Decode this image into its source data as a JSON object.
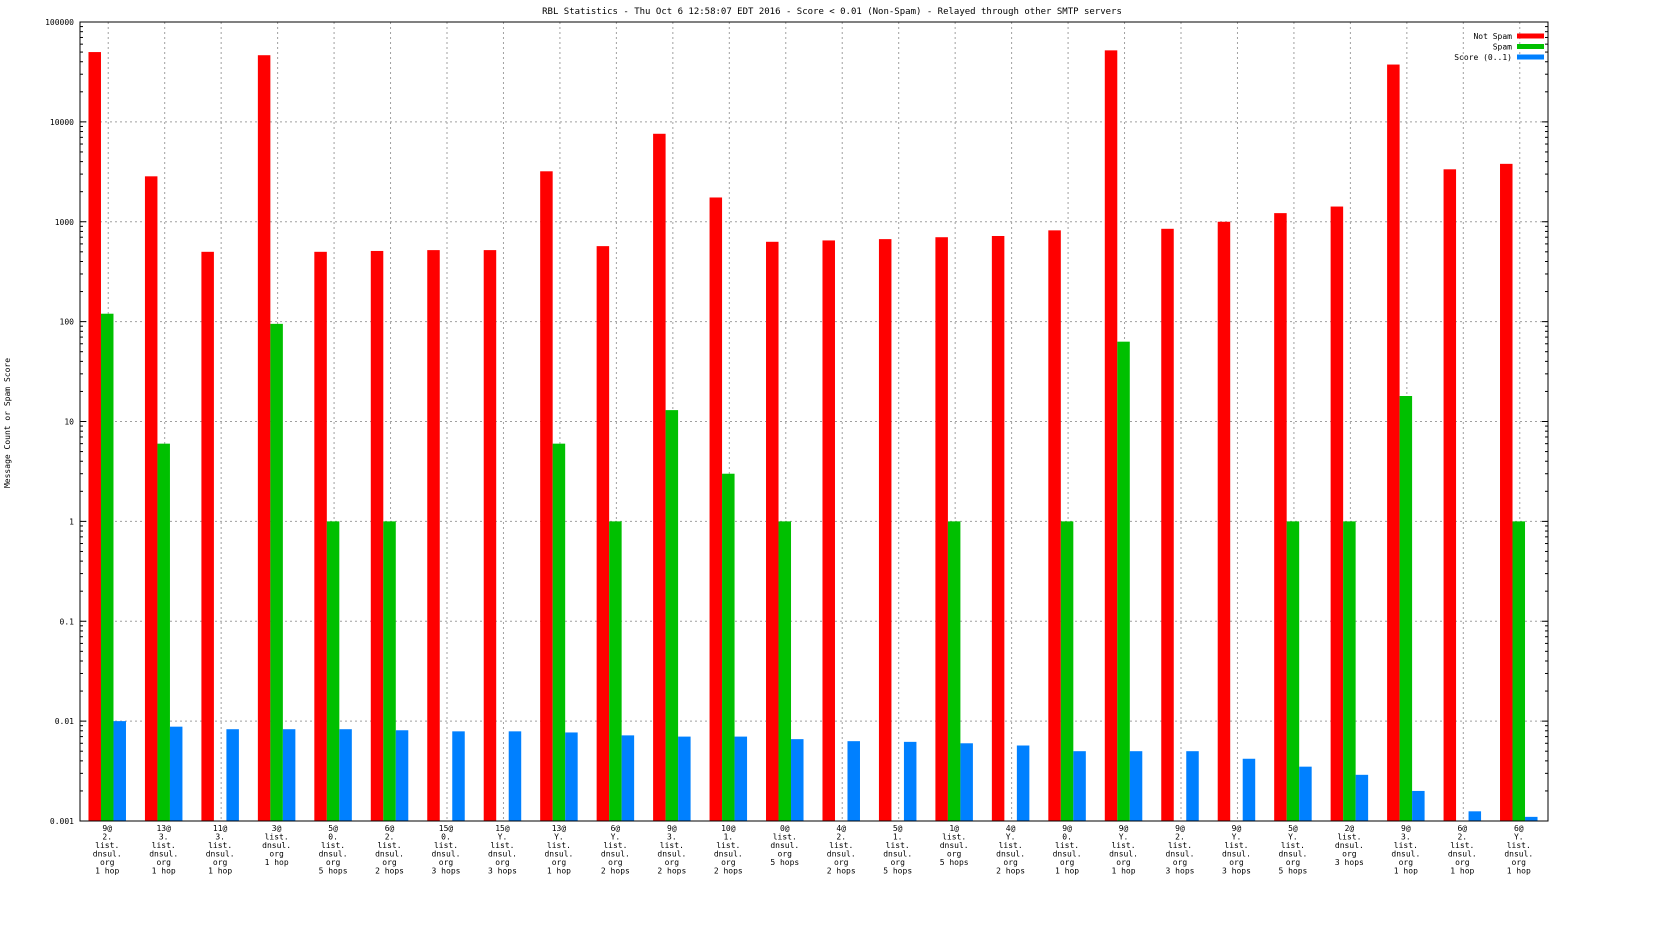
{
  "chart_data": {
    "type": "bar",
    "title": "RBL Statistics - Thu Oct  6 12:58:07 EDT 2016 - Score < 0.01 (Non-Spam) - Relayed through other SMTP servers",
    "xlabel": "",
    "ylabel": "Message Count or Spam Score",
    "y_scale": "log",
    "ylim": [
      0.001,
      100000
    ],
    "y_ticks": [
      "0.001",
      "0.01",
      "0.1",
      "1",
      "10",
      "100",
      "1000",
      "10000",
      "100000"
    ],
    "grid": true,
    "legend_position": "top-right",
    "categories": [
      [
        "9@",
        "2.",
        "list.",
        "dnsul.",
        "org",
        "1 hop"
      ],
      [
        "13@",
        "3.",
        "list.",
        "dnsul.",
        "org",
        "1 hop"
      ],
      [
        "11@",
        "3.",
        "list.",
        "dnsul.",
        "org",
        "1 hop"
      ],
      [
        "3@",
        "list.",
        "dnsul.",
        "org",
        "1 hop"
      ],
      [
        "5@",
        "0.",
        "list.",
        "dnsul.",
        "org",
        "5 hops"
      ],
      [
        "6@",
        "2.",
        "list.",
        "dnsul.",
        "org",
        "2 hops"
      ],
      [
        "15@",
        "0.",
        "list.",
        "dnsul.",
        "org",
        "3 hops"
      ],
      [
        "15@",
        "Y.",
        "list.",
        "dnsul.",
        "org",
        "3 hops"
      ],
      [
        "13@",
        "Y.",
        "list.",
        "dnsul.",
        "org",
        "1 hop"
      ],
      [
        "6@",
        "Y.",
        "list.",
        "dnsul.",
        "org",
        "2 hops"
      ],
      [
        "9@",
        "3.",
        "list.",
        "dnsul.",
        "org",
        "2 hops"
      ],
      [
        "10@",
        "1.",
        "list.",
        "dnsul.",
        "org",
        "2 hops"
      ],
      [
        "0@",
        "list.",
        "dnsul.",
        "org",
        "5 hops"
      ],
      [
        "4@",
        "2.",
        "list.",
        "dnsul.",
        "org",
        "2 hops"
      ],
      [
        "5@",
        "1.",
        "list.",
        "dnsul.",
        "org",
        "5 hops"
      ],
      [
        "1@",
        "list.",
        "dnsul.",
        "org",
        "5 hops"
      ],
      [
        "4@",
        "Y.",
        "list.",
        "dnsul.",
        "org",
        "2 hops"
      ],
      [
        "9@",
        "0.",
        "list.",
        "dnsul.",
        "org",
        "1 hop"
      ],
      [
        "9@",
        "Y.",
        "list.",
        "dnsul.",
        "org",
        "1 hop"
      ],
      [
        "9@",
        "2.",
        "list.",
        "dnsul.",
        "org",
        "3 hops"
      ],
      [
        "9@",
        "Y.",
        "list.",
        "dnsul.",
        "org",
        "3 hops"
      ],
      [
        "5@",
        "Y.",
        "list.",
        "dnsul.",
        "org",
        "5 hops"
      ],
      [
        "2@",
        "list.",
        "dnsul.",
        "org",
        "3 hops"
      ],
      [
        "9@",
        "3.",
        "list.",
        "dnsul.",
        "org",
        "1 hop"
      ],
      [
        "6@",
        "2.",
        "list.",
        "dnsul.",
        "org",
        "1 hop"
      ],
      [
        "6@",
        "Y.",
        "list.",
        "dnsul.",
        "org",
        "1 hop"
      ]
    ],
    "series": [
      {
        "name": "Not Spam",
        "color": "#ff0000",
        "values": [
          50000,
          2850,
          500,
          46500,
          500,
          510,
          520,
          520,
          3200,
          570,
          7600,
          1750,
          630,
          650,
          670,
          700,
          720,
          820,
          52000,
          850,
          1000,
          1220,
          1420,
          37500,
          3350,
          3800
        ]
      },
      {
        "name": "Spam",
        "color": "#00c000",
        "values": [
          120,
          6,
          null,
          95,
          1,
          1,
          null,
          null,
          6,
          1,
          13,
          3,
          1,
          null,
          null,
          1,
          null,
          1,
          63,
          null,
          null,
          1,
          1,
          18,
          null,
          1
        ]
      },
      {
        "name": "Score (0..1)",
        "color": "#0080ff",
        "values": [
          0.01,
          0.0088,
          0.0083,
          0.0083,
          0.0083,
          0.0081,
          0.0079,
          0.0079,
          0.0077,
          0.0072,
          0.007,
          0.007,
          0.0066,
          0.0063,
          0.0062,
          0.006,
          0.0057,
          0.005,
          0.005,
          0.005,
          0.0042,
          0.0035,
          0.0029,
          0.002,
          0.00125,
          0.0011
        ]
      }
    ]
  }
}
